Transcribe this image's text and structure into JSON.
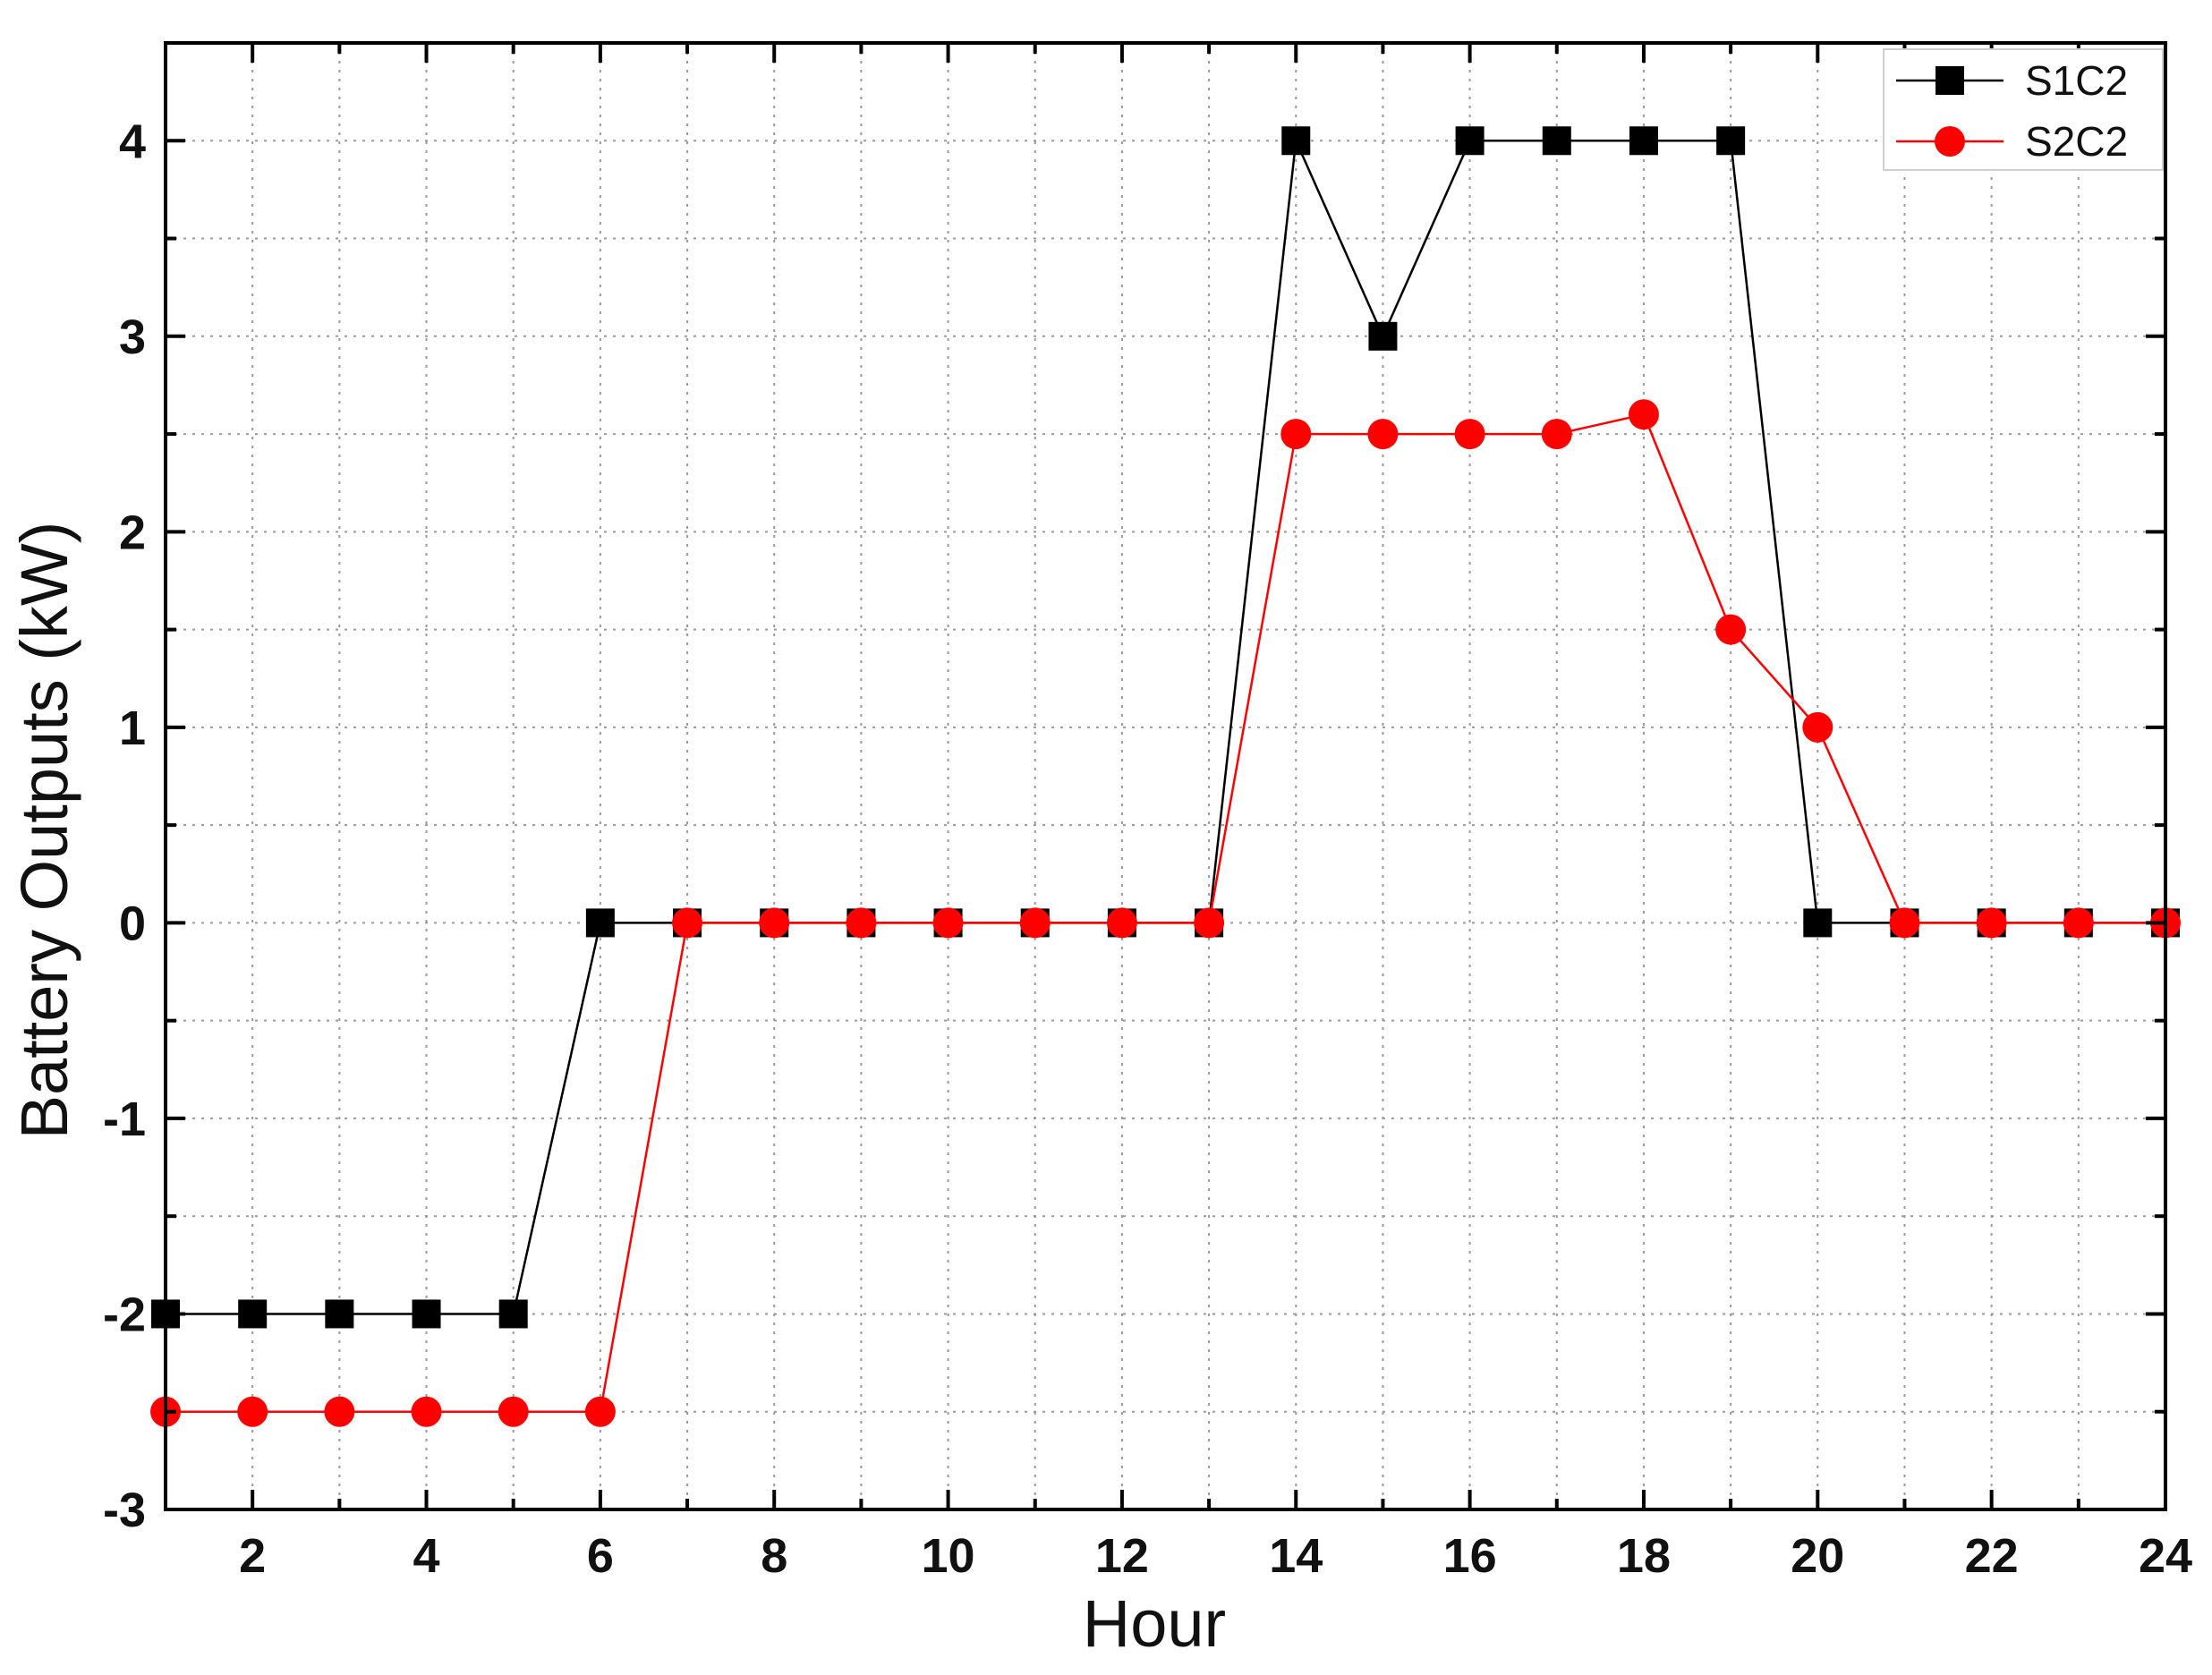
{
  "chart_data": {
    "type": "line",
    "title": "",
    "xlabel": "Hour",
    "ylabel": "Battery Outputs (kW)",
    "xlim": [
      1,
      24
    ],
    "ylim": [
      -3,
      4.5
    ],
    "x_ticks": [
      2,
      4,
      6,
      8,
      10,
      12,
      14,
      16,
      18,
      20,
      22,
      24
    ],
    "y_ticks": [
      -3,
      -2,
      -1,
      0,
      1,
      2,
      3,
      4
    ],
    "grid": true,
    "legend_position": "top-right",
    "x": [
      1,
      2,
      3,
      4,
      5,
      6,
      7,
      8,
      9,
      10,
      11,
      12,
      13,
      14,
      15,
      16,
      17,
      18,
      19,
      20,
      21,
      22,
      23,
      24
    ],
    "series": [
      {
        "name": "S1C2",
        "color": "#000000",
        "marker": "square",
        "values": [
          -2,
          -2,
          -2,
          -2,
          -2,
          0,
          0,
          0,
          0,
          0,
          0,
          0,
          0,
          4,
          3,
          4,
          4,
          4,
          4,
          0,
          0,
          0,
          0,
          0
        ]
      },
      {
        "name": "S2C2",
        "color": "#ff0000",
        "marker": "circle",
        "values": [
          -2.5,
          -2.5,
          -2.5,
          -2.5,
          -2.5,
          -2.5,
          0,
          0,
          0,
          0,
          0,
          0,
          0,
          2.5,
          2.5,
          2.5,
          2.5,
          2.6,
          1.5,
          1,
          0,
          0,
          0,
          0
        ]
      }
    ]
  }
}
